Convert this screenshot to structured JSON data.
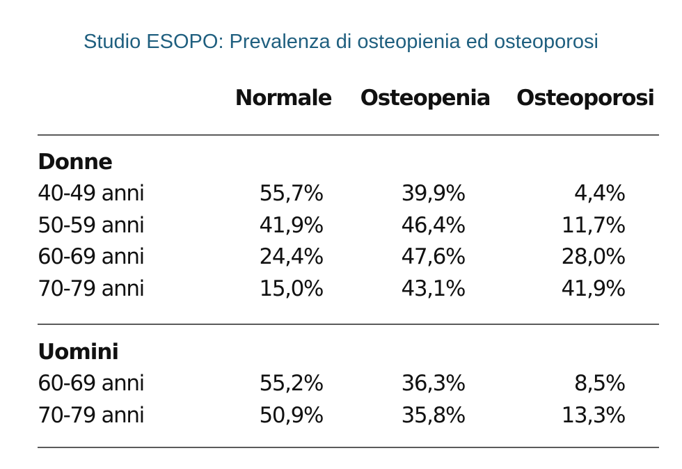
{
  "chart_data": {
    "type": "table",
    "title": "Studio ESOPO: Prevalenza di osteopienia ed osteoporosi",
    "columns": [
      "Normale",
      "Osteopenia",
      "Osteoporosi"
    ],
    "groups": [
      {
        "name": "Donne",
        "rows": [
          {
            "label": "40-49 anni",
            "values": [
              "55,7%",
              "39,9%",
              "4,4%"
            ]
          },
          {
            "label": "50-59 anni",
            "values": [
              "41,9%",
              "46,4%",
              "11,7%"
            ]
          },
          {
            "label": "60-69 anni",
            "values": [
              "24,4%",
              "47,6%",
              "28,0%"
            ]
          },
          {
            "label": "70-79 anni",
            "values": [
              "15,0%",
              "43,1%",
              "41,9%"
            ]
          }
        ]
      },
      {
        "name": "Uomini",
        "rows": [
          {
            "label": "60-69 anni",
            "values": [
              "55,2%",
              "36,3%",
              "8,5%"
            ]
          },
          {
            "label": "70-79 anni",
            "values": [
              "50,9%",
              "35,8%",
              "13,3%"
            ]
          }
        ]
      }
    ]
  },
  "colors": {
    "title": "#1f5f7f",
    "text": "#111111",
    "rule": "#5a5a5a"
  }
}
